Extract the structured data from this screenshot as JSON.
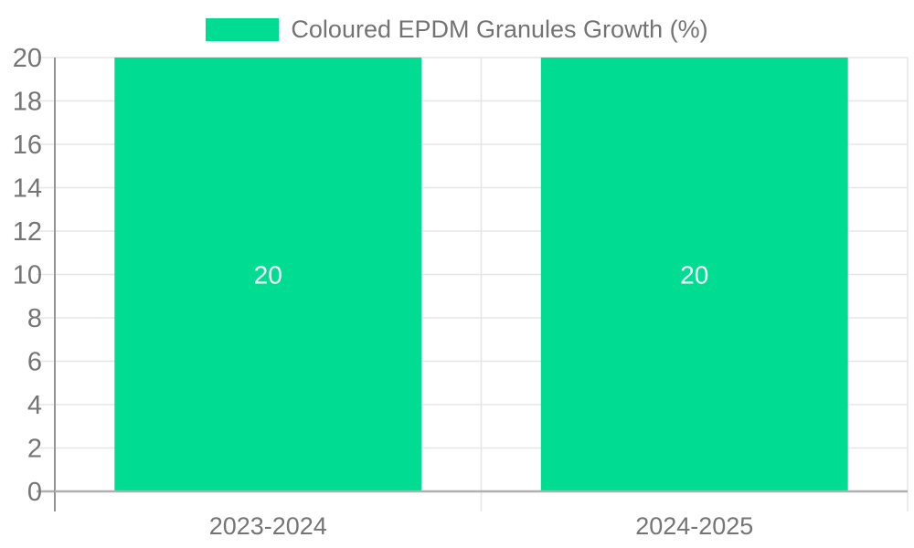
{
  "chart_data": {
    "type": "bar",
    "title": "",
    "legend_position": "top",
    "categories": [
      "2023-2024",
      "2024-2025"
    ],
    "series": [
      {
        "name": "Coloured EPDM Granules Growth (%)",
        "values": [
          20,
          20
        ]
      }
    ],
    "data_labels": [
      "20",
      "20"
    ],
    "ylim": [
      0,
      20
    ],
    "ytick_step": 2,
    "yticks": [
      0,
      2,
      4,
      6,
      8,
      10,
      12,
      14,
      16,
      18,
      20
    ],
    "grid": true,
    "colors": {
      "bar": "#00dc92",
      "grid_line": "#e6e6e6",
      "baseline": "#b0b0b0",
      "axis_line": "#949494",
      "axis_text": "#757575",
      "legend_text": "#737373",
      "value_label": "#ffffff"
    }
  }
}
